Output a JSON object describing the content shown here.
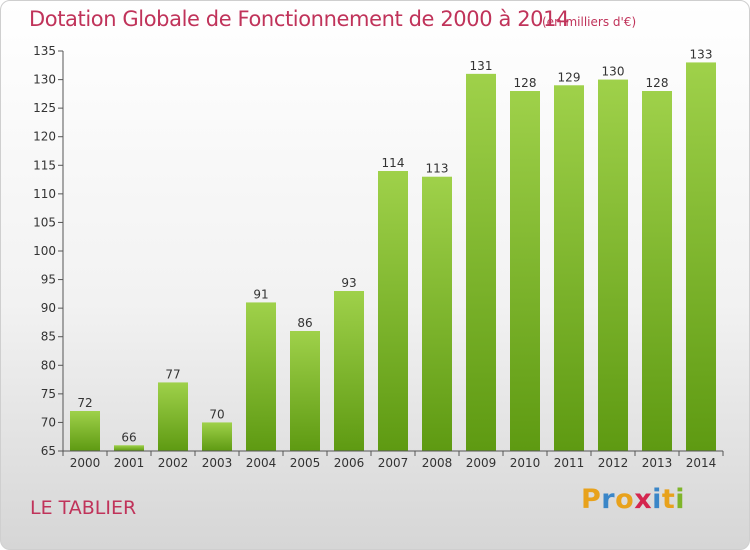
{
  "title": "Dotation Globale de Fonctionnement de 2000 à 2014",
  "unit": "(en milliers d'€)",
  "commune": "LE TABLIER",
  "brand": {
    "letters": [
      "P",
      "r",
      "o",
      "x",
      "i",
      "t",
      "i"
    ],
    "colors": [
      "#e8a21c",
      "#3a86c8",
      "#e8a21c",
      "#d4264f",
      "#3a86c8",
      "#e8a21c",
      "#7fb52a"
    ]
  },
  "colors": {
    "title": "#c0335a",
    "bar_light": "#9fd14a",
    "bar_dark": "#5e9a12",
    "axis": "#555555"
  },
  "chart_data": {
    "type": "bar",
    "title": "Dotation Globale de Fonctionnement de 2000 à 2014",
    "categories": [
      "2000",
      "2001",
      "2002",
      "2003",
      "2004",
      "2005",
      "2006",
      "2007",
      "2008",
      "2009",
      "2010",
      "2011",
      "2012",
      "2013",
      "2014"
    ],
    "values": [
      72,
      66,
      77,
      70,
      91,
      86,
      93,
      114,
      113,
      131,
      128,
      129,
      130,
      128,
      133
    ],
    "ylim": [
      65,
      135
    ],
    "yticks": [
      65,
      70,
      75,
      80,
      85,
      90,
      95,
      100,
      105,
      110,
      115,
      120,
      125,
      130,
      135
    ],
    "grid": false,
    "legend": "none"
  }
}
